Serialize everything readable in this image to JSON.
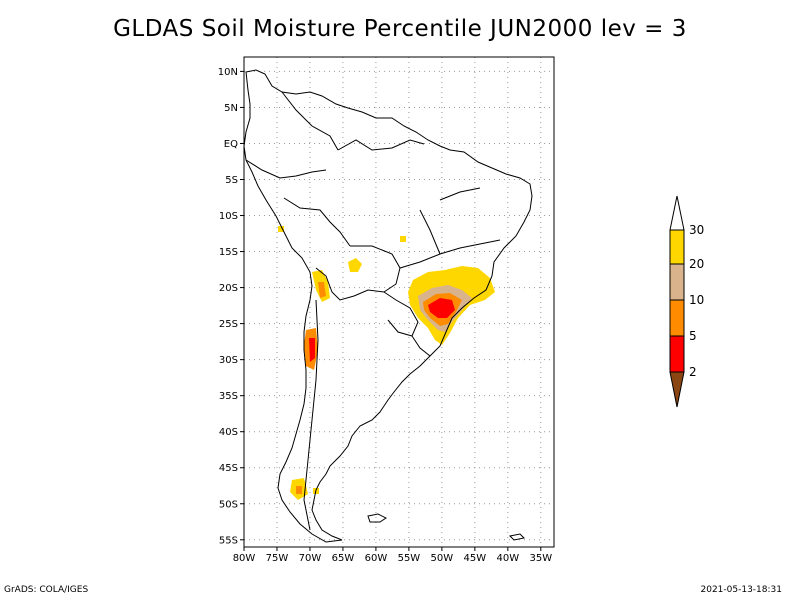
{
  "title": "GLDAS Soil Moisture Percentile JUN2000 lev = 3",
  "axes": {
    "lat_labels": [
      "10N",
      "5N",
      "EQ",
      "5S",
      "10S",
      "15S",
      "20S",
      "25S",
      "30S",
      "35S",
      "40S",
      "45S",
      "50S",
      "55S"
    ],
    "lon_labels": [
      "80W",
      "75W",
      "70W",
      "65W",
      "60W",
      "55W",
      "50W",
      "45W",
      "40W",
      "35W"
    ],
    "lon_range": [
      -80,
      -33
    ],
    "lat_range": [
      -56,
      12
    ],
    "grid": "dotted"
  },
  "legend": {
    "labels": [
      "30",
      "20",
      "10",
      "5",
      "2"
    ],
    "colors": {
      "above_30": "#ffffff",
      "20_30": "#ffd700",
      "10_20": "#d9b38c",
      "5_10": "#ff8c00",
      "2_5": "#ff0000",
      "below_2": "#8b4513"
    }
  },
  "colors": {
    "coastline": "#000000",
    "grid": "#999999"
  },
  "footer": {
    "left": "GrADS: COLA/IGES",
    "right": "2021-05-13-18:31"
  }
}
